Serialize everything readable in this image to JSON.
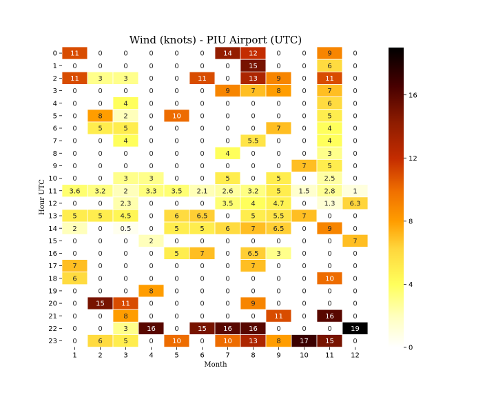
{
  "chart_data": {
    "type": "heatmap",
    "title": "Wind (knots) - PIU Airport (UTC)",
    "xlabel": "Month",
    "ylabel": "Hour UTC",
    "x_categories": [
      "1",
      "2",
      "3",
      "4",
      "5",
      "6",
      "7",
      "8",
      "9",
      "10",
      "11",
      "12"
    ],
    "y_categories": [
      "0",
      "1",
      "2",
      "3",
      "4",
      "5",
      "6",
      "7",
      "8",
      "9",
      "10",
      "11",
      "12",
      "13",
      "14",
      "15",
      "16",
      "17",
      "18",
      "19",
      "20",
      "21",
      "22",
      "23"
    ],
    "values": [
      [
        "11",
        "0",
        "0",
        "0",
        "0",
        "0",
        "14",
        "12",
        "0",
        "0",
        "9",
        "0"
      ],
      [
        "0",
        "0",
        "0",
        "0",
        "0",
        "0",
        "0",
        "15",
        "0",
        "0",
        "6",
        "0"
      ],
      [
        "11",
        "3",
        "3",
        "0",
        "0",
        "11",
        "0",
        "13",
        "9",
        "0",
        "11",
        "0"
      ],
      [
        "0",
        "0",
        "0",
        "0",
        "0",
        "0",
        "9",
        "7",
        "8",
        "0",
        "7",
        "0"
      ],
      [
        "0",
        "0",
        "4",
        "0",
        "0",
        "0",
        "0",
        "0",
        "0",
        "0",
        "6",
        "0"
      ],
      [
        "0",
        "8",
        "2",
        "0",
        "10",
        "0",
        "0",
        "0",
        "0",
        "0",
        "5",
        "0"
      ],
      [
        "0",
        "5",
        "5",
        "0",
        "0",
        "0",
        "0",
        "0",
        "7",
        "0",
        "4",
        "0"
      ],
      [
        "0",
        "0",
        "4",
        "0",
        "0",
        "0",
        "0",
        "5.5",
        "0",
        "0",
        "4",
        "0"
      ],
      [
        "0",
        "0",
        "0",
        "0",
        "0",
        "0",
        "4",
        "0",
        "0",
        "0",
        "3",
        "0"
      ],
      [
        "0",
        "0",
        "0",
        "0",
        "0",
        "0",
        "0",
        "0",
        "0",
        "7",
        "5",
        "0"
      ],
      [
        "0",
        "0",
        "3",
        "3",
        "0",
        "0",
        "5",
        "0",
        "5",
        "0",
        "2.5",
        "0"
      ],
      [
        "3.6",
        "3.2",
        "2",
        "3.3",
        "3.5",
        "2.1",
        "2.6",
        "3.2",
        "5",
        "1.5",
        "2.8",
        "1"
      ],
      [
        "0",
        "0",
        "2.3",
        "0",
        "0",
        "0",
        "3.5",
        "4",
        "4.7",
        "0",
        "1.3",
        "6.3"
      ],
      [
        "5",
        "5",
        "4.5",
        "0",
        "6",
        "6.5",
        "0",
        "5",
        "5.5",
        "7",
        "0",
        "0"
      ],
      [
        "2",
        "0",
        "0.5",
        "0",
        "5",
        "5",
        "6",
        "7",
        "6.5",
        "0",
        "9",
        "0"
      ],
      [
        "0",
        "0",
        "0",
        "2",
        "0",
        "0",
        "0",
        "0",
        "0",
        "0",
        "0",
        "7"
      ],
      [
        "0",
        "0",
        "0",
        "0",
        "5",
        "7",
        "0",
        "6.5",
        "3",
        "0",
        "0",
        "0"
      ],
      [
        "7",
        "0",
        "0",
        "0",
        "0",
        "0",
        "0",
        "7",
        "0",
        "0",
        "0",
        "0"
      ],
      [
        "6",
        "0",
        "0",
        "0",
        "0",
        "0",
        "0",
        "0",
        "0",
        "0",
        "10",
        "0"
      ],
      [
        "0",
        "0",
        "0",
        "8",
        "0",
        "0",
        "0",
        "0",
        "0",
        "0",
        "0",
        "0"
      ],
      [
        "0",
        "15",
        "11",
        "0",
        "0",
        "0",
        "0",
        "9",
        "0",
        "0",
        "0",
        "0"
      ],
      [
        "0",
        "0",
        "8",
        "0",
        "0",
        "0",
        "0",
        "0",
        "11",
        "0",
        "16",
        "0"
      ],
      [
        "0",
        "0",
        "3",
        "16",
        "0",
        "15",
        "16",
        "16",
        "0",
        "0",
        "0",
        "19"
      ],
      [
        "0",
        "6",
        "5",
        "0",
        "10",
        "0",
        "10",
        "13",
        "8",
        "17",
        "15",
        "0"
      ]
    ],
    "colormap": "afmhot_r",
    "vmin": 0,
    "vmax": 19,
    "colorbar_ticks": [
      "0",
      "4",
      "8",
      "12",
      "16"
    ],
    "gridlines": "white cell borders",
    "colorbar_position": "right"
  }
}
